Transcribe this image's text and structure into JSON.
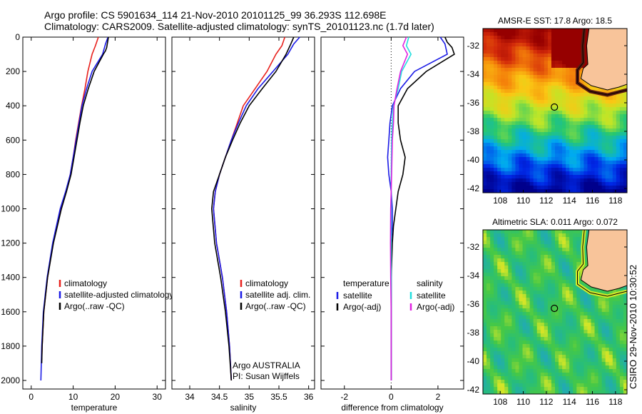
{
  "header": {
    "line1": "Argo profile: CS 5901634_114 21-Nov-2010 20101125_99 36.293S 112.698E",
    "line2": "Climatology: CARS2009. Satellite-adjusted climatology: synTS_20101123.nc (1.7d later)"
  },
  "side_label": "CSIRO 29-Nov-2010 10:30:52",
  "colors": {
    "climatology": "#e8201c",
    "satellite": "#1a1ae6",
    "argo": "#000000",
    "salinity_sat": "#22dede",
    "salinity_argo": "#e020e0",
    "land": "#f8c49a"
  },
  "chart_data": [
    {
      "type": "line",
      "xlabel": "temperature",
      "ylabel": "",
      "xlim": [
        -2,
        32
      ],
      "ylim": [
        2050,
        0
      ],
      "xticks": [
        0,
        10,
        20,
        30
      ],
      "yticks": [
        0,
        200,
        400,
        600,
        800,
        1000,
        1200,
        1400,
        1600,
        1800,
        2000
      ],
      "legend": [
        "climatology",
        "satellite-adjusted climatology",
        "Argo(..raw -QC)"
      ],
      "legend_position": "lower-right",
      "series": [
        {
          "name": "climatology",
          "color": "#e8201c",
          "depth": [
            0,
            50,
            100,
            200,
            300,
            400,
            500,
            600,
            700,
            800,
            900,
            1000,
            1200,
            1400,
            1600,
            1800,
            1880
          ],
          "values": [
            16,
            15.3,
            14.5,
            13.5,
            12.8,
            12.0,
            11.3,
            10.6,
            10.0,
            9.3,
            8.3,
            7.0,
            5.2,
            3.9,
            3.0,
            2.6,
            2.5
          ]
        },
        {
          "name": "satellite-adjusted climatology",
          "color": "#1a1ae6",
          "depth": [
            0,
            40,
            100,
            200,
            300,
            400,
            500,
            600,
            700,
            800,
            900,
            1000,
            1200,
            1400,
            1600,
            1800,
            2000
          ],
          "values": [
            18.3,
            17.7,
            17.0,
            14.5,
            13.2,
            12.1,
            11.4,
            10.7,
            10.0,
            9.3,
            8.2,
            6.9,
            5.1,
            3.8,
            2.9,
            2.5,
            2.3
          ]
        },
        {
          "name": "Argo(..raw -QC)",
          "color": "#000000",
          "depth": [
            0,
            30,
            60,
            80,
            100,
            200,
            300,
            400,
            500,
            600,
            700,
            800,
            900,
            1000,
            1200,
            1400,
            1600,
            1800,
            1900
          ],
          "values": [
            18.4,
            18.2,
            18.0,
            17.7,
            17.2,
            15.0,
            13.6,
            12.4,
            11.6,
            10.9,
            10.2,
            9.5,
            8.4,
            7.2,
            5.3,
            3.9,
            3.0,
            2.6,
            2.5
          ]
        }
      ]
    },
    {
      "type": "line",
      "xlabel": "salinity",
      "ylabel": "",
      "xlim": [
        33.7,
        36.1
      ],
      "ylim": [
        2050,
        0
      ],
      "xticks": [
        34,
        34.5,
        35,
        35.5,
        36
      ],
      "legend": [
        "climatology",
        "satellite adj. clim.",
        "Argo(..raw -QC)"
      ],
      "legend_position": "lower-right",
      "annotation": [
        "Argo AUSTRALIA",
        "PI: Susan Wijffels"
      ],
      "series": [
        {
          "name": "climatology",
          "color": "#e8201c",
          "depth": [
            0,
            50,
            100,
            200,
            300,
            400,
            500,
            600,
            700,
            800,
            900,
            1000,
            1200,
            1400,
            1600,
            1800,
            2000
          ],
          "values": [
            35.6,
            35.55,
            35.45,
            35.3,
            35.1,
            34.9,
            34.8,
            34.7,
            34.6,
            34.5,
            34.43,
            34.4,
            34.45,
            34.55,
            34.62,
            34.67,
            34.7
          ]
        },
        {
          "name": "satellite adj. clim.",
          "color": "#1a1ae6",
          "depth": [
            0,
            40,
            100,
            200,
            300,
            400,
            500,
            600,
            700,
            800,
            900,
            1000,
            1200,
            1400,
            1600,
            1800,
            2000
          ],
          "values": [
            35.85,
            35.75,
            35.65,
            35.4,
            35.15,
            34.95,
            34.82,
            34.7,
            34.6,
            34.5,
            34.43,
            34.4,
            34.45,
            34.55,
            34.62,
            34.67,
            34.7
          ]
        },
        {
          "name": "Argo(..raw -QC)",
          "color": "#000000",
          "depth": [
            0,
            40,
            100,
            200,
            300,
            400,
            500,
            600,
            700,
            800,
            900,
            1000,
            1200,
            1400,
            1600,
            1800,
            2000
          ],
          "values": [
            35.75,
            35.7,
            35.62,
            35.45,
            35.22,
            35.0,
            34.85,
            34.72,
            34.6,
            34.5,
            34.4,
            34.37,
            34.42,
            34.52,
            34.6,
            34.66,
            34.7
          ]
        }
      ]
    },
    {
      "type": "line",
      "xlabel": "difference from climatology",
      "ylabel": "",
      "xlim": [
        -3,
        3.1
      ],
      "ylim": [
        2050,
        0
      ],
      "xticks": [
        -2,
        0,
        2
      ],
      "legend": [
        "temperature",
        "satellite",
        "Argo(-adj)",
        "salinity",
        "satellite",
        "Argo(-adj)"
      ],
      "legend_position": "lower",
      "series": [
        {
          "name": "satellite",
          "color": "#1a1ae6",
          "depth": [
            0,
            40,
            100,
            200,
            300,
            400,
            500,
            600,
            700,
            800,
            900,
            1000,
            1100,
            1200,
            1400,
            1600,
            1800,
            2000
          ],
          "values": [
            2.1,
            2.3,
            2.4,
            1.0,
            0.4,
            0.05,
            -0.05,
            -0.1,
            -0.15,
            -0.1,
            0.0,
            0.05,
            0.05,
            0.0,
            0.0,
            0.0,
            0.0,
            0.0
          ]
        },
        {
          "name": "Argo(-adj)",
          "color": "#000000",
          "depth": [
            0,
            30,
            60,
            100,
            200,
            300,
            400,
            500,
            600,
            700,
            800,
            900,
            1000,
            1100,
            1200,
            1400,
            1600,
            1800,
            2000
          ],
          "values": [
            2.3,
            2.4,
            2.6,
            2.7,
            1.5,
            0.7,
            0.3,
            0.3,
            0.4,
            0.6,
            0.5,
            0.3,
            0.2,
            0.1,
            0.05,
            0.0,
            0.0,
            0.0,
            0.0
          ]
        },
        {
          "name": "salinity satellite",
          "color": "#22dede",
          "depth": [
            0,
            50,
            100,
            200,
            300,
            400,
            500,
            600,
            800,
            1000,
            1200,
            1400,
            1600,
            1800,
            2000
          ],
          "values": [
            0.75,
            0.65,
            0.85,
            0.45,
            0.3,
            0.1,
            0.05,
            0.02,
            0.0,
            0.0,
            0.0,
            0.0,
            0.0,
            0.0,
            0.0
          ]
        },
        {
          "name": "salinity Argo(-adj)",
          "color": "#e020e0",
          "depth": [
            0,
            50,
            100,
            200,
            300,
            400,
            500,
            600,
            800,
            1000,
            1200,
            1400,
            1600,
            1800,
            2000
          ],
          "values": [
            0.65,
            0.5,
            0.7,
            0.4,
            0.25,
            0.12,
            0.1,
            0.05,
            0.02,
            -0.02,
            -0.03,
            -0.02,
            0.0,
            0.0,
            0.0
          ]
        }
      ]
    },
    {
      "type": "heatmap",
      "title": "AMSR-E SST: 17.8 Argo: 18.5",
      "xlim": [
        106.5,
        119
      ],
      "ylim": [
        -42.3,
        -30.8
      ],
      "xticks": [
        108,
        110,
        112,
        114,
        116,
        118
      ],
      "yticks": [
        -32,
        -34,
        -36,
        -38,
        -40,
        -42
      ],
      "marker": {
        "lon": 112.7,
        "lat": -36.3
      }
    },
    {
      "type": "heatmap",
      "title": "Altimetric SLA: 0.011 Argo: 0.072",
      "xlim": [
        106.5,
        119
      ],
      "ylim": [
        -42.3,
        -30.8
      ],
      "xticks": [
        108,
        110,
        112,
        114,
        116,
        118
      ],
      "yticks": [
        -32,
        -34,
        -36,
        -38,
        -40,
        -42
      ],
      "marker": {
        "lon": 112.7,
        "lat": -36.3
      }
    }
  ]
}
